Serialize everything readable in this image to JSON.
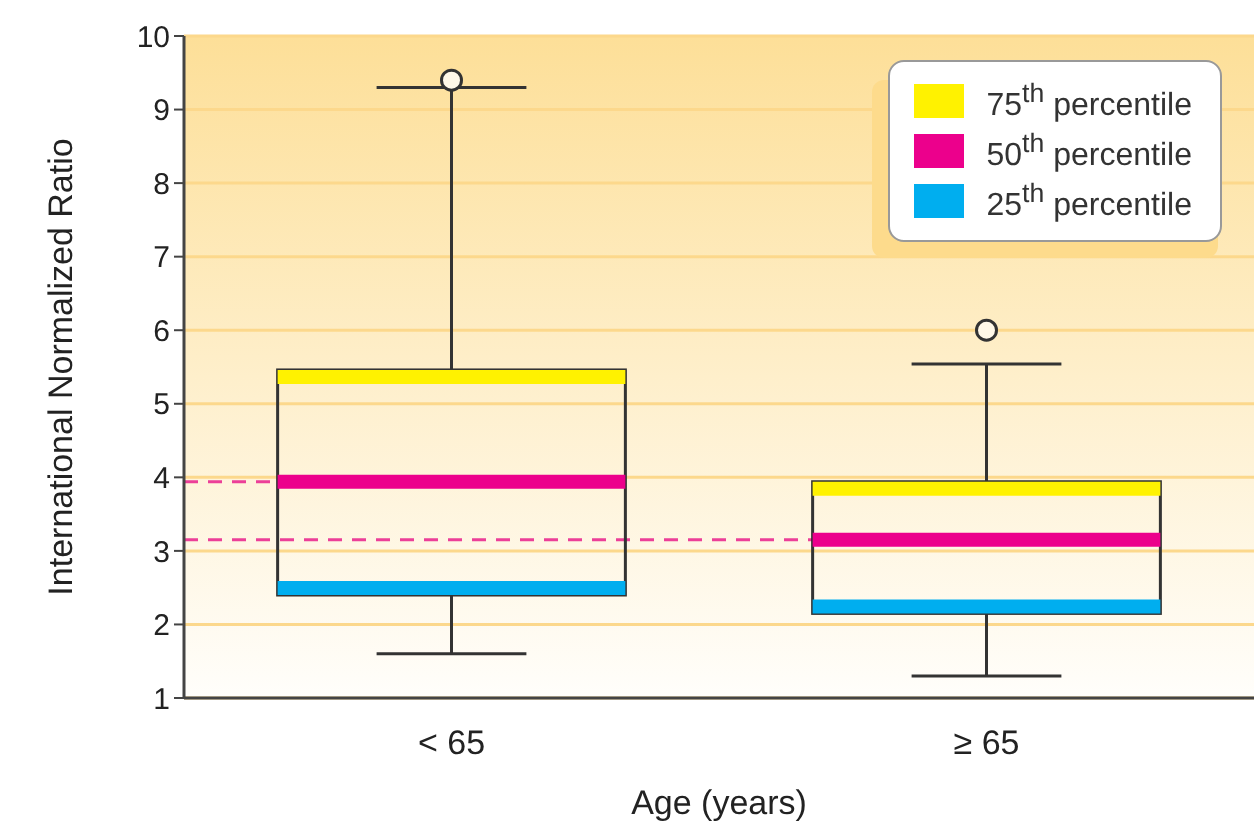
{
  "chart_data": {
    "type": "box",
    "xlabel": "Age (years)",
    "ylabel": "International Normalized Ratio",
    "categories": [
      "< 65",
      "≥ 65"
    ],
    "boxes": [
      {
        "low": 1.6,
        "q1": 2.4,
        "median": 3.94,
        "q3": 5.46,
        "high": 9.3,
        "outliers": [
          9.4
        ]
      },
      {
        "low": 1.3,
        "q1": 2.15,
        "median": 3.15,
        "q3": 3.94,
        "high": 5.54,
        "outliers": [
          6.0
        ]
      }
    ],
    "series": [
      {
        "name": "75$^{th}$ percentile",
        "color": "#fff200",
        "values": [
          null,
          null
        ]
      },
      {
        "name": "50$^{th}$ percentile",
        "color": "#ec008c",
        "values": [
          null,
          null
        ]
      },
      {
        "name": "25$^{th}$ percentile",
        "color": "#00aeef",
        "values": [
          null,
          null
        ]
      }
    ],
    "ref_lines": [
      {
        "axis": "y",
        "value": 3.94,
        "color": "#ec3f98",
        "line_style": "dashed"
      },
      {
        "axis": "y",
        "value": 3.15,
        "color": "#ec3f98",
        "line_style": "dashed"
      }
    ],
    "ylim": [
      1,
      10
    ],
    "yticks": [
      1,
      2,
      3,
      4,
      5,
      6,
      7,
      8,
      9,
      10
    ],
    "grid": "y",
    "legend": "top right"
  }
}
